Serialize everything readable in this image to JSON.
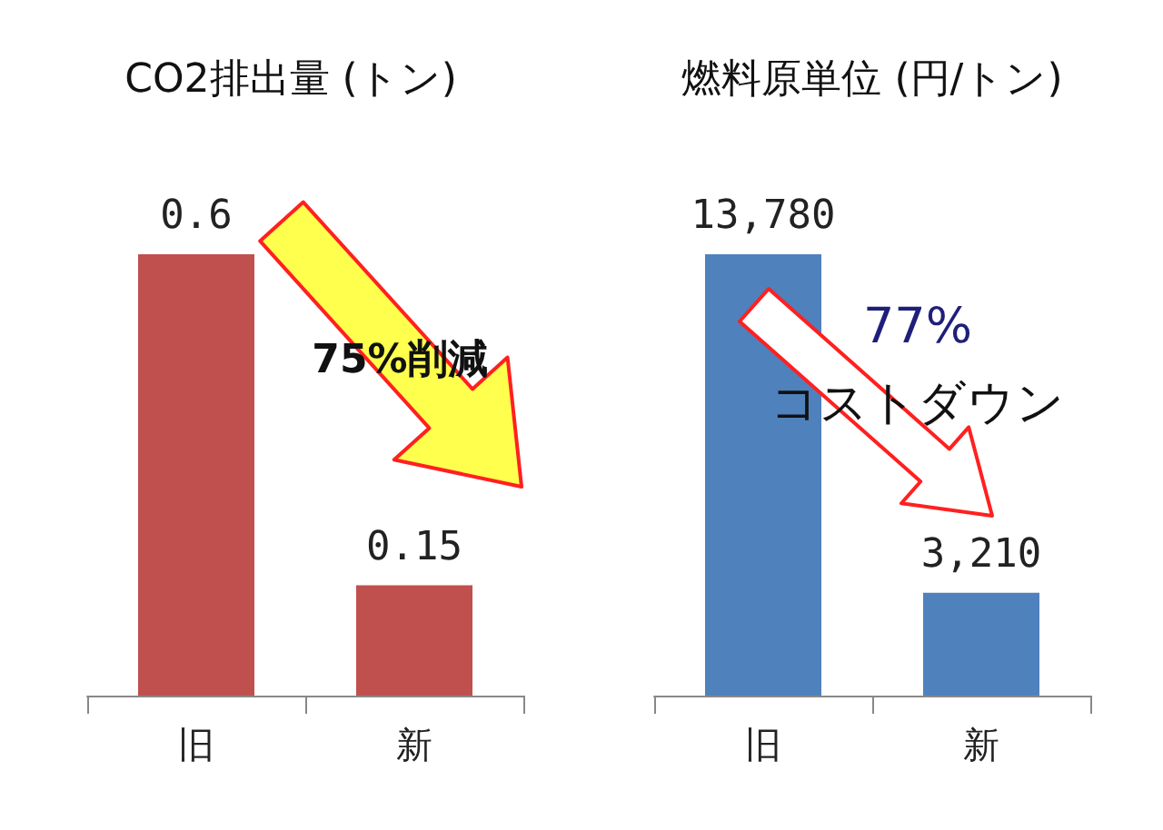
{
  "chart_data": [
    {
      "type": "bar",
      "title": "CO2排出量 (トン)",
      "categories": [
        "旧",
        "新"
      ],
      "values": [
        0.6,
        0.15
      ],
      "color": "#c0504d",
      "data_labels": true,
      "annotations": [
        "75%削減"
      ]
    },
    {
      "type": "bar",
      "title": "燃料原単位 (円/トン)",
      "categories": [
        "旧",
        "新"
      ],
      "values": [
        13780,
        3210
      ],
      "value_labels": [
        "13,780",
        "3,210"
      ],
      "color": "#4f81bd",
      "annotations": [
        "77%",
        "コストダウン"
      ]
    }
  ]
}
